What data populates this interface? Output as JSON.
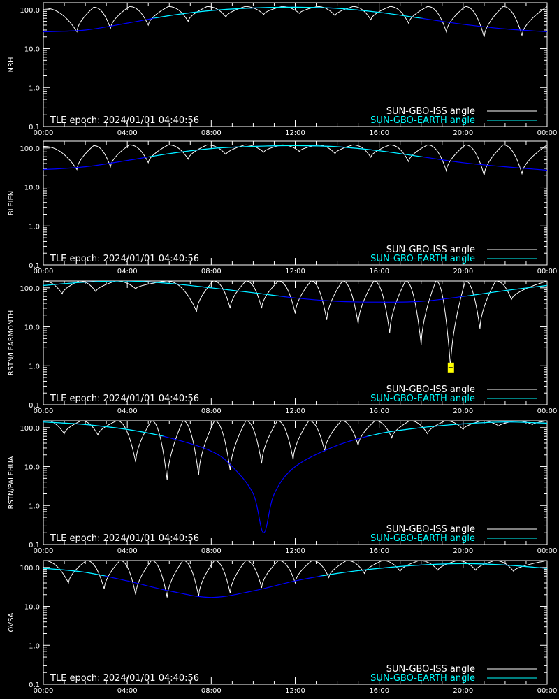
{
  "chart_data": [
    {
      "type": "line",
      "ylabel": "NRH",
      "y_scale": "log",
      "ylim": [
        0.1,
        150
      ],
      "xlim": [
        "00:00",
        "24:00"
      ],
      "x_ticks": [
        "00:00",
        "04:00",
        "08:00",
        "12:00",
        "16:00",
        "20:00",
        "00:00"
      ],
      "y_ticks": [
        "0.1",
        "1.0",
        "10.0",
        "100.0"
      ],
      "annotation": "TLE epoch: 2024/01/01 04:40:56",
      "legend": [
        "SUN-GBO-ISS angle",
        "SUN-GBO-EARTH angle"
      ],
      "legend_placement": "bottom-right",
      "earth": {
        "hours": [
          0,
          2,
          4,
          6,
          8,
          10,
          12,
          14,
          16,
          18,
          20,
          22,
          24
        ],
        "values": [
          27,
          30,
          45,
          70,
          95,
          110,
          115,
          108,
          85,
          60,
          42,
          32,
          27
        ]
      },
      "iss": {
        "min_hours": [
          1.6,
          3.2,
          5.0,
          6.9,
          8.7,
          10.5,
          12.2,
          13.9,
          15.6,
          17.4,
          19.2,
          21.0,
          22.8
        ],
        "min_values": [
          27,
          33,
          40,
          50,
          65,
          75,
          80,
          70,
          55,
          45,
          27,
          20,
          22
        ],
        "peak_values": [
          110,
          115,
          120,
          120,
          120,
          120,
          120,
          120,
          120,
          120,
          120,
          120,
          120,
          120
        ]
      }
    },
    {
      "type": "line",
      "ylabel": "BLEIEN",
      "y_scale": "log",
      "ylim": [
        0.1,
        150
      ],
      "xlim": [
        "00:00",
        "24:00"
      ],
      "x_ticks": [
        "00:00",
        "04:00",
        "08:00",
        "12:00",
        "16:00",
        "20:00",
        "00:00"
      ],
      "y_ticks": [
        "0.1",
        "1.0",
        "10.0",
        "100.0"
      ],
      "annotation": "TLE epoch: 2024/01/01 04:40:56",
      "legend": [
        "SUN-GBO-ISS angle",
        "SUN-GBO-EARTH angle"
      ],
      "legend_placement": "bottom-right",
      "earth": {
        "hours": [
          0,
          2,
          4,
          6,
          8,
          10,
          12,
          14,
          16,
          18,
          20,
          22,
          24
        ],
        "values": [
          28,
          33,
          48,
          72,
          97,
          110,
          115,
          108,
          85,
          60,
          42,
          33,
          27
        ]
      },
      "iss": {
        "min_hours": [
          1.6,
          3.2,
          5.0,
          6.9,
          8.7,
          10.5,
          12.2,
          13.9,
          15.6,
          17.4,
          19.2,
          21.0,
          22.8
        ],
        "min_values": [
          28,
          33,
          42,
          52,
          68,
          78,
          82,
          72,
          58,
          45,
          26,
          20,
          22
        ],
        "peak_values": [
          110,
          115,
          120,
          120,
          120,
          120,
          120,
          120,
          120,
          120,
          120,
          120,
          120,
          120
        ]
      }
    },
    {
      "type": "line",
      "ylabel": "RSTN/LEARMONTH",
      "y_scale": "log",
      "ylim": [
        0.1,
        150
      ],
      "xlim": [
        "00:00",
        "24:00"
      ],
      "x_ticks": [
        "00:00",
        "04:00",
        "08:00",
        "12:00",
        "16:00",
        "20:00",
        "00:00"
      ],
      "y_ticks": [
        "0.1",
        "1.0",
        "10.0",
        "100.0"
      ],
      "annotation": "TLE epoch: 2024/01/01 04:40:56",
      "legend": [
        "SUN-GBO-ISS angle",
        "SUN-GBO-EARTH angle"
      ],
      "legend_placement": "bottom-right",
      "marker": {
        "hour": 19.4,
        "value": 0.9,
        "color": "#ffff00"
      },
      "earth": {
        "hours": [
          0,
          2,
          4,
          6,
          8,
          10,
          12,
          14,
          16,
          18,
          20,
          22,
          24
        ],
        "values": [
          115,
          140,
          150,
          130,
          100,
          75,
          55,
          45,
          43,
          45,
          60,
          85,
          115
        ]
      },
      "iss": {
        "min_hours": [
          0.9,
          2.5,
          4.4,
          7.3,
          8.9,
          10.4,
          12.0,
          13.5,
          15.0,
          16.5,
          18.0,
          19.4,
          20.8,
          22.3
        ],
        "min_values": [
          70,
          80,
          95,
          25,
          30,
          30,
          22,
          15,
          12,
          7,
          3.5,
          0.9,
          9,
          50
        ],
        "peak_values": [
          150,
          150,
          150,
          150,
          150,
          150,
          150,
          150,
          150,
          150,
          150,
          150,
          150,
          150,
          150
        ]
      }
    },
    {
      "type": "line",
      "ylabel": "RSTN/PALEHUA",
      "y_scale": "log",
      "ylim": [
        0.1,
        150
      ],
      "xlim": [
        "00:00",
        "24:00"
      ],
      "x_ticks": [
        "00:00",
        "04:00",
        "08:00",
        "12:00",
        "16:00",
        "20:00",
        "00:00"
      ],
      "y_ticks": [
        "0.1",
        "1.0",
        "10.0",
        "100.0"
      ],
      "annotation": "TLE epoch: 2024/01/01 04:40:56",
      "legend": [
        "SUN-GBO-ISS angle",
        "SUN-GBO-EARTH angle"
      ],
      "legend_placement": "bottom-right",
      "earth": {
        "hours": [
          0,
          2,
          4,
          6,
          8,
          9,
          10,
          10.5,
          11,
          12,
          14,
          16,
          18,
          20,
          22,
          24
        ],
        "values": [
          140,
          120,
          90,
          55,
          25,
          10,
          2,
          0.2,
          2,
          10,
          35,
          70,
          100,
          125,
          140,
          130
        ],
        "cyan_from_index": 14
      },
      "iss": {
        "min_hours": [
          1.0,
          2.6,
          4.4,
          5.9,
          7.4,
          8.9,
          10.4,
          11.9,
          13.4,
          15.0,
          16.6,
          18.3,
          20.0,
          21.7,
          23.3
        ],
        "min_values": [
          70,
          65,
          13,
          4.5,
          6,
          8,
          12,
          15,
          25,
          35,
          55,
          70,
          90,
          110,
          120
        ],
        "peak_values": [
          160,
          150,
          150,
          150,
          150,
          150,
          150,
          150,
          150,
          150,
          150,
          150,
          150,
          150,
          150,
          150
        ]
      }
    },
    {
      "type": "line",
      "ylabel": "OVSA",
      "y_scale": "log",
      "ylim": [
        0.1,
        150
      ],
      "xlim": [
        "00:00",
        "24:00"
      ],
      "x_ticks": [
        "00:00",
        "04:00",
        "08:00",
        "12:00",
        "16:00",
        "20:00",
        "00:00"
      ],
      "y_ticks": [
        "0.1",
        "1.0",
        "10.0",
        "100.0"
      ],
      "annotation": "TLE epoch: 2024/01/01 04:40:56",
      "legend": [
        "SUN-GBO-ISS angle",
        "SUN-GBO-EARTH angle"
      ],
      "legend_placement": "bottom-right",
      "earth": {
        "hours": [
          0,
          2,
          4,
          6,
          8,
          10,
          12,
          14,
          16,
          18,
          20,
          22,
          24
        ],
        "values": [
          95,
          75,
          45,
          25,
          17,
          25,
          45,
          70,
          95,
          115,
          125,
          115,
          95
        ]
      },
      "iss": {
        "min_hours": [
          1.2,
          2.9,
          4.4,
          5.9,
          7.4,
          8.9,
          10.4,
          12.0,
          13.6,
          15.3,
          17.0,
          18.8,
          20.6,
          22.4
        ],
        "min_values": [
          40,
          28,
          20,
          17,
          18,
          22,
          30,
          40,
          55,
          70,
          80,
          85,
          85,
          80
        ],
        "peak_values": [
          150,
          150,
          150,
          150,
          150,
          150,
          150,
          150,
          150,
          150,
          150,
          150,
          150,
          150,
          150
        ]
      }
    }
  ],
  "colors": {
    "background": "#000000",
    "axes": "#ffffff",
    "iss_line": "#ffffff",
    "earth_line_visible": "#00ffff",
    "earth_line_below": "#0000ff",
    "marker": "#ffff00"
  }
}
